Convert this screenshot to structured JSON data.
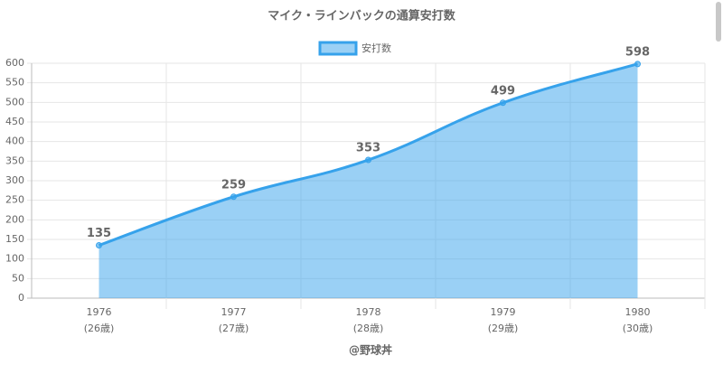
{
  "chart_data": {
    "type": "area",
    "title": "マイク・ラインバックの通算安打数",
    "categories": [
      "1976",
      "1977",
      "1978",
      "1979",
      "1980"
    ],
    "category_sublabels": [
      "(26歳)",
      "(27歳)",
      "(28歳)",
      "(29歳)",
      "(30歳)"
    ],
    "x_label": "@野球丼",
    "series": [
      {
        "name": "安打数",
        "color": "#36a2eb",
        "values": [
          135,
          259,
          353,
          499,
          598
        ]
      }
    ],
    "ylim": [
      0,
      600
    ],
    "yticks": [
      0,
      50,
      100,
      150,
      200,
      250,
      300,
      350,
      400,
      450,
      500,
      550,
      600
    ],
    "grid": true,
    "legend": "top"
  }
}
